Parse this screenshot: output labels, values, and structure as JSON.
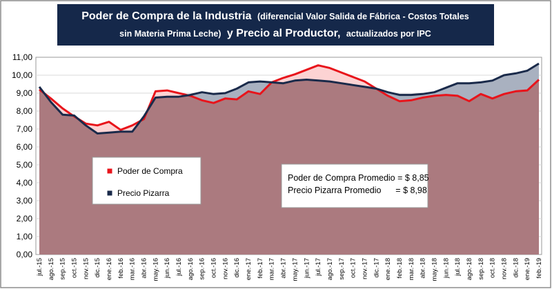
{
  "chart_data": {
    "type": "area",
    "title": {
      "part1_bold": "Poder de Compra de la Industria",
      "part1_small": "(diferencial Valor Salida de Fábrica - Costos Totales",
      "part2_small": "sin Materia Prima Leche)",
      "part2_bold": "y Precio al Productor,",
      "part2_tail": "actualizados por IPC"
    },
    "ylim": [
      0,
      11
    ],
    "y_ticks": [
      "0,00",
      "1,00",
      "2,00",
      "3,00",
      "4,00",
      "5,00",
      "6,00",
      "7,00",
      "8,00",
      "9,00",
      "10,00",
      "11,00"
    ],
    "categories": [
      "jul.-15",
      "ago.-15",
      "sep.-15",
      "oct.-15",
      "nov.-15",
      "dic.-15",
      "ene.-16",
      "feb.-16",
      "mar.-16",
      "abr.-16",
      "may.-16",
      "jun.-16",
      "jul.-16",
      "ago.-16",
      "sep.-16",
      "oct.-16",
      "nov.-16",
      "dic.-16",
      "ene.-17",
      "feb.-17",
      "mar.-17",
      "abr.-17",
      "may.-17",
      "jun.-17",
      "jul.-17",
      "ago.-17",
      "sep.-17",
      "oct.-17",
      "nov.-17",
      "dic.-17",
      "ene.-18",
      "feb.-18",
      "mar.-18",
      "abr.-18",
      "may.-18",
      "jun.-18",
      "jul.-18",
      "ago.-18",
      "sep.-18",
      "oct.-18",
      "nov.-18",
      "dic.-18",
      "ene.-19",
      "feb.-19"
    ],
    "series": [
      {
        "name": "Poder de Compra",
        "color": "#e8141b",
        "values": [
          9.2,
          8.7,
          8.15,
          7.7,
          7.3,
          7.2,
          7.4,
          6.95,
          7.2,
          7.55,
          9.1,
          9.15,
          9.0,
          8.85,
          8.6,
          8.45,
          8.7,
          8.65,
          9.1,
          8.95,
          9.6,
          9.85,
          10.05,
          10.3,
          10.55,
          10.4,
          10.15,
          9.9,
          9.65,
          9.25,
          8.85,
          8.55,
          8.6,
          8.75,
          8.85,
          8.9,
          8.85,
          8.55,
          8.95,
          8.7,
          8.95,
          9.1,
          9.15,
          9.75
        ]
      },
      {
        "name": "Precio Pizarra",
        "color": "#1a2a4a",
        "values": [
          9.35,
          8.5,
          7.8,
          7.75,
          7.2,
          6.75,
          6.8,
          6.85,
          6.85,
          7.7,
          8.75,
          8.8,
          8.8,
          8.9,
          9.05,
          8.95,
          9.0,
          9.25,
          9.6,
          9.65,
          9.6,
          9.55,
          9.7,
          9.75,
          9.7,
          9.65,
          9.55,
          9.45,
          9.35,
          9.25,
          9.05,
          8.9,
          8.9,
          8.95,
          9.05,
          9.3,
          9.55,
          9.55,
          9.6,
          9.7,
          10.0,
          10.1,
          10.25,
          10.65
        ]
      }
    ],
    "legend": {
      "placement": "left-middle",
      "items": [
        "Poder de Compra",
        "Precio Pizarra"
      ]
    },
    "annotation": {
      "lines": [
        "Poder de Compra Promedio = $ 8,85",
        "Precio Pizarra Promedio      = $ 8,98"
      ]
    },
    "colors": {
      "red_fill": "#fcd3d3",
      "navy_fill": "#a9b1c0",
      "common_fill": "#ab7a7f",
      "title_bg": "#15284a"
    }
  }
}
